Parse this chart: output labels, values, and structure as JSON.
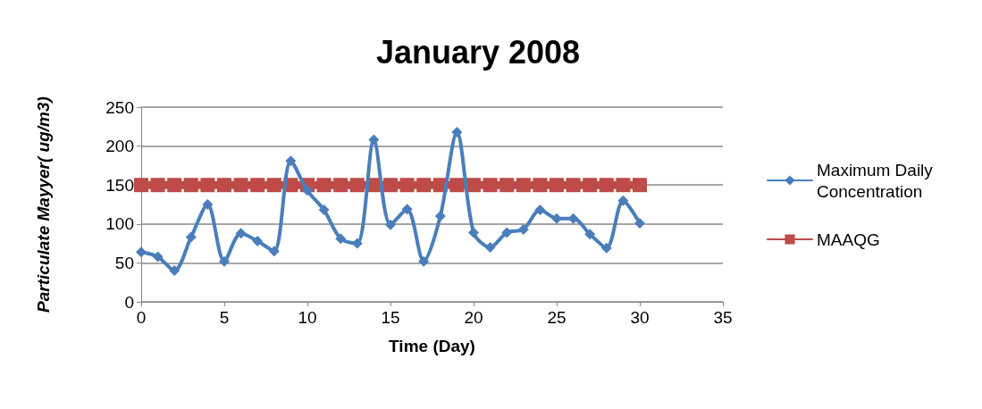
{
  "chart_data": {
    "type": "line",
    "title": "January 2008",
    "xlabel": "Time (Day)",
    "ylabel": "Particulate Mayyer( ug/m3)",
    "x": [
      0,
      1,
      2,
      3,
      4,
      5,
      6,
      7,
      8,
      9,
      10,
      11,
      12,
      13,
      14,
      15,
      16,
      17,
      18,
      19,
      20,
      21,
      22,
      23,
      24,
      25,
      26,
      27,
      28,
      29,
      30
    ],
    "series": [
      {
        "name": "Maximum Daily Concentration",
        "color": "#4a7ebb",
        "marker": "diamond",
        "values": [
          64,
          58,
          40,
          83,
          125,
          52,
          88,
          78,
          65,
          181,
          143,
          118,
          81,
          75,
          208,
          99,
          119,
          52,
          110,
          218,
          89,
          70,
          89,
          93,
          118,
          107,
          107,
          87,
          69,
          130,
          101
        ]
      },
      {
        "name": "MAAQG",
        "color": "#be4b48",
        "marker": "square",
        "values": [
          150,
          150,
          150,
          150,
          150,
          150,
          150,
          150,
          150,
          150,
          150,
          150,
          150,
          150,
          150,
          150,
          150,
          150,
          150,
          150,
          150,
          150,
          150,
          150,
          150,
          150,
          150,
          150,
          150,
          150,
          150
        ]
      }
    ],
    "xlim": [
      0,
      35
    ],
    "xticks": [
      0,
      5,
      10,
      15,
      20,
      25,
      30,
      35
    ],
    "ylim": [
      0,
      250
    ],
    "yticks": [
      0,
      50,
      100,
      150,
      200,
      250
    ],
    "grid": "y",
    "legend": "right",
    "line_style": "solid"
  }
}
